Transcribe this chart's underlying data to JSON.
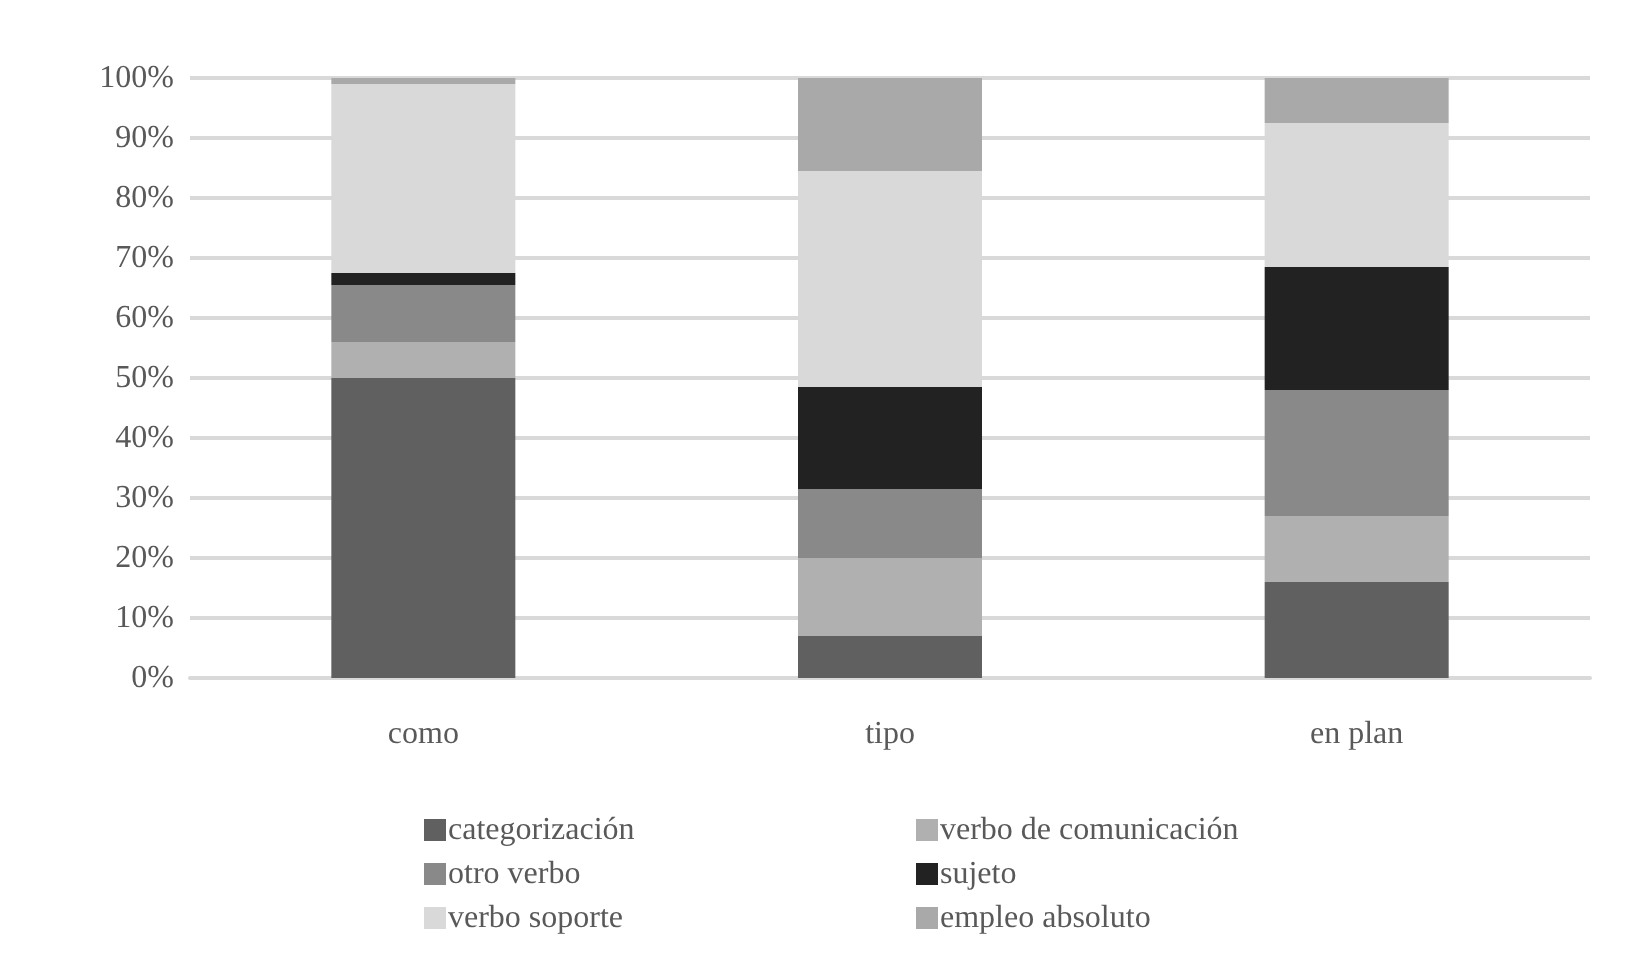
{
  "chart_data": {
    "type": "bar",
    "stacked": true,
    "categories": [
      "como",
      "tipo",
      "en plan"
    ],
    "series": [
      {
        "name": "categorización",
        "color": "#606060",
        "values": [
          50,
          7,
          16
        ]
      },
      {
        "name": "verbo de comunicación",
        "color": "#b0b0b0",
        "values": [
          6,
          13,
          11
        ]
      },
      {
        "name": "otro verbo",
        "color": "#898989",
        "values": [
          9.5,
          11.5,
          21
        ]
      },
      {
        "name": "sujeto",
        "color": "#222222",
        "values": [
          2,
          17,
          20.5
        ]
      },
      {
        "name": "verbo soporte",
        "color": "#d9d9d9",
        "values": [
          31.5,
          36,
          24
        ]
      },
      {
        "name": "empleo absoluto",
        "color": "#a9a9a9",
        "values": [
          1,
          15.5,
          7.5
        ]
      }
    ],
    "ylim": [
      0,
      100
    ],
    "yticks": [
      {
        "value": 0,
        "label": "0%"
      },
      {
        "value": 10,
        "label": "10%"
      },
      {
        "value": 20,
        "label": "20%"
      },
      {
        "value": 30,
        "label": "30%"
      },
      {
        "value": 40,
        "label": "40%"
      },
      {
        "value": 50,
        "label": "50%"
      },
      {
        "value": 60,
        "label": "60%"
      },
      {
        "value": 70,
        "label": "70%"
      },
      {
        "value": 80,
        "label": "80%"
      },
      {
        "value": 90,
        "label": "90%"
      },
      {
        "value": 100,
        "label": "100%"
      }
    ],
    "grid": "y",
    "legend": "bottom"
  }
}
